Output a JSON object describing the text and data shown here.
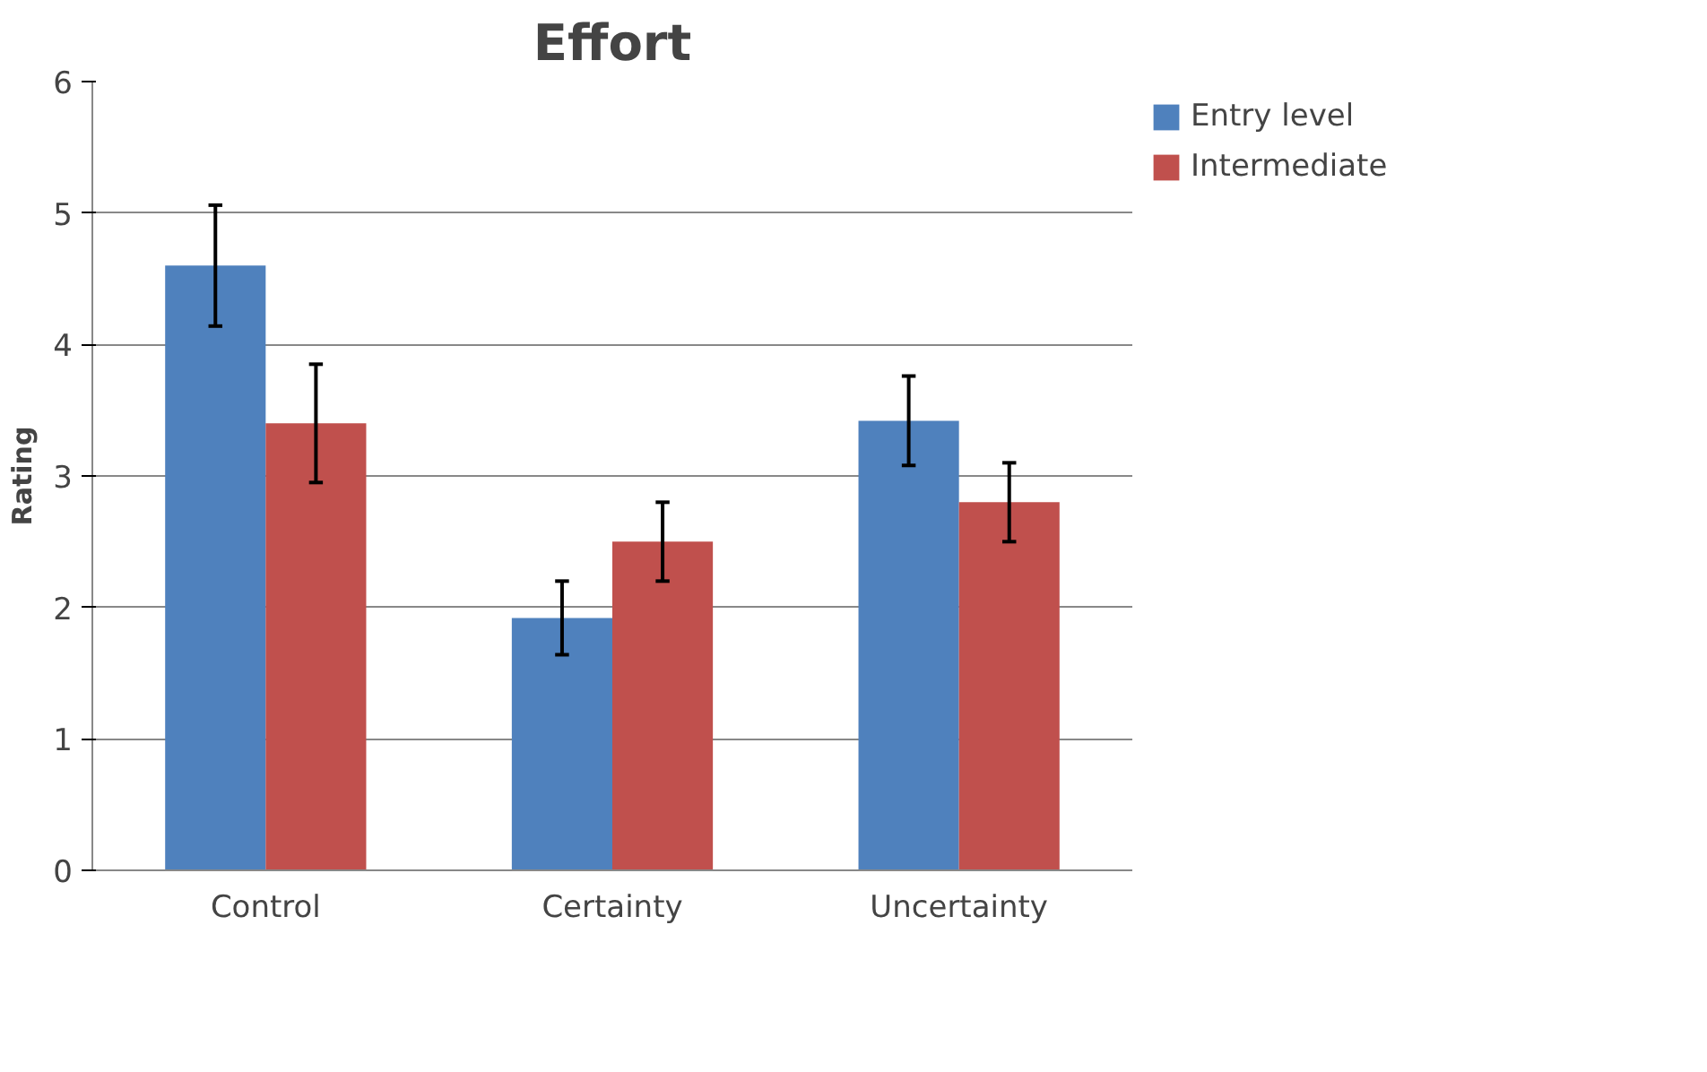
{
  "chart_data": {
    "type": "bar",
    "title": "Effort",
    "ylabel": "Rating",
    "categories": [
      "Control",
      "Certainty",
      "Uncertainty"
    ],
    "series": [
      {
        "name": "Entry level",
        "color": "#4f81bd",
        "values": [
          4.6,
          1.92,
          3.42
        ],
        "errors": [
          0.46,
          0.28,
          0.34
        ]
      },
      {
        "name": "Intermediate",
        "color": "#c0504d",
        "values": [
          3.4,
          2.5,
          2.8
        ],
        "errors": [
          0.45,
          0.3,
          0.3
        ]
      }
    ],
    "ylim": [
      0,
      6
    ],
    "yticks": [
      0,
      1,
      2,
      3,
      4,
      5,
      6
    ],
    "grid": "y",
    "legend": "top right"
  }
}
